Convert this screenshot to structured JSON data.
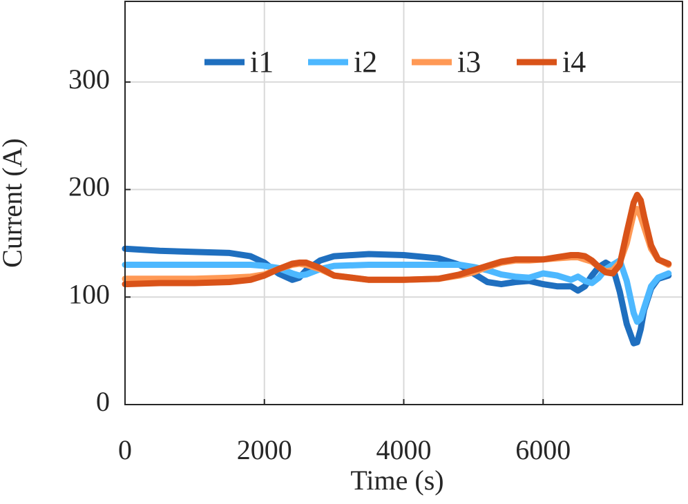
{
  "chart_data": {
    "type": "line",
    "xlabel": "Time (s)",
    "ylabel": "Current (A)",
    "x": [
      0,
      500,
      1000,
      1500,
      1800,
      2000,
      2200,
      2400,
      2500,
      2600,
      2800,
      3000,
      3500,
      4000,
      4500,
      4800,
      5000,
      5200,
      5400,
      5600,
      5800,
      6000,
      6200,
      6400,
      6500,
      6600,
      6700,
      6800,
      6900,
      7000,
      7100,
      7200,
      7300,
      7350,
      7400,
      7450,
      7550,
      7650,
      7800
    ],
    "series": [
      {
        "name": "i1",
        "color": "#1f6fbf",
        "values": [
          145,
          143,
          142,
          141,
          138,
          132,
          122,
          116,
          118,
          125,
          134,
          138,
          140,
          139,
          136,
          130,
          122,
          114,
          112,
          114,
          115,
          112,
          110,
          110,
          106,
          110,
          120,
          128,
          132,
          128,
          105,
          75,
          57,
          58,
          70,
          88,
          108,
          117,
          120
        ]
      },
      {
        "name": "i2",
        "color": "#4db8ff",
        "values": [
          130,
          130,
          130,
          130,
          130,
          129,
          127,
          122,
          120,
          121,
          126,
          129,
          130,
          130,
          130,
          130,
          128,
          125,
          121,
          119,
          118,
          122,
          120,
          116,
          119,
          115,
          113,
          118,
          126,
          130,
          134,
          115,
          85,
          77,
          80,
          90,
          110,
          118,
          122
        ]
      },
      {
        "name": "i3",
        "color": "#ff9955",
        "values": [
          117,
          117,
          117,
          118,
          119,
          121,
          126,
          130,
          131,
          130,
          126,
          120,
          116,
          116,
          117,
          120,
          123,
          128,
          132,
          134,
          134,
          135,
          136,
          137,
          137,
          135,
          133,
          128,
          124,
          125,
          132,
          150,
          178,
          182,
          175,
          165,
          145,
          135,
          130
        ]
      },
      {
        "name": "i4",
        "color": "#d95319",
        "values": [
          112,
          113,
          113,
          114,
          116,
          120,
          126,
          131,
          132,
          132,
          127,
          120,
          116,
          116,
          117,
          121,
          125,
          129,
          133,
          135,
          135,
          135,
          137,
          139,
          139,
          138,
          134,
          128,
          123,
          122,
          130,
          160,
          188,
          195,
          190,
          175,
          148,
          135,
          131
        ]
      }
    ],
    "xlim": [
      0,
      8000
    ],
    "xticks": [
      0,
      2000,
      4000,
      6000
    ],
    "ylim": [
      0,
      375
    ],
    "yticks": [
      0,
      100,
      200,
      300
    ],
    "grid": true,
    "legend": "top"
  }
}
